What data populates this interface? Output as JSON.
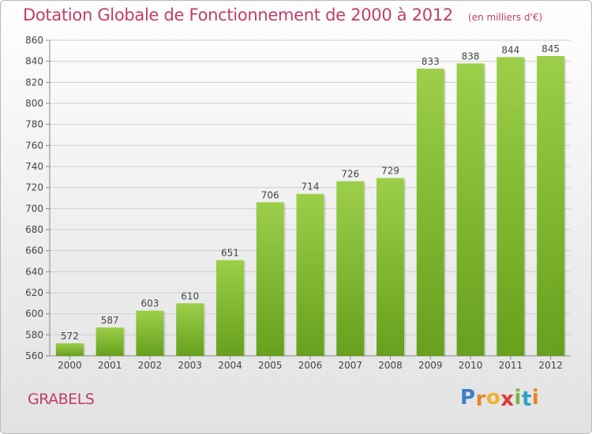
{
  "header": {
    "title": "Dotation Globale de Fonctionnement de 2000 à 2012",
    "unit": "(en milliers d'€)"
  },
  "footer": {
    "commune": "GRABELS",
    "logo_letters": [
      "P",
      "r",
      "o",
      "x",
      "i",
      "t",
      "i"
    ],
    "logo_colors": [
      "#3b7ec9",
      "#e8832b",
      "#f0b22d",
      "#d9383a",
      "#7cb342",
      "#2aa3c9",
      "#e8832b"
    ]
  },
  "colors": {
    "bar_top": "#9ccf4a",
    "bar_bottom": "#66a01c",
    "grid": "#cfcfcf",
    "text": "#444444",
    "accent": "#c23b6b"
  },
  "chart_data": {
    "type": "bar",
    "categories": [
      "2000",
      "2001",
      "2002",
      "2003",
      "2004",
      "2005",
      "2006",
      "2007",
      "2008",
      "2009",
      "2010",
      "2011",
      "2012"
    ],
    "values": [
      572,
      587,
      603,
      610,
      651,
      706,
      714,
      726,
      729,
      833,
      838,
      844,
      845
    ],
    "ylim": [
      560,
      860
    ],
    "yticks": [
      560,
      580,
      600,
      620,
      640,
      660,
      680,
      700,
      720,
      740,
      760,
      780,
      800,
      820,
      840,
      860
    ],
    "grid": true,
    "title": "Dotation Globale de Fonctionnement de 2000 à 2012",
    "xlabel": "",
    "ylabel": ""
  }
}
